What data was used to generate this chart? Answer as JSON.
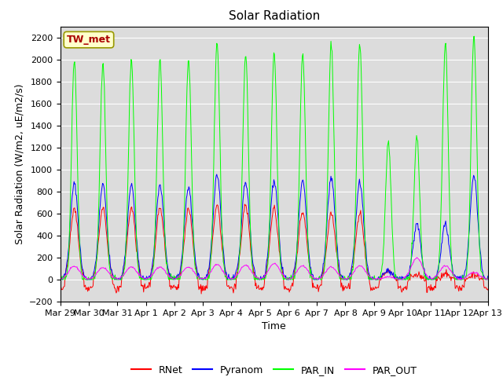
{
  "title": "Solar Radiation",
  "ylabel": "Solar Radiation (W/m2, uE/m2/s)",
  "xlabel": "Time",
  "station_label": "TW_met",
  "ylim": [
    -200,
    2300
  ],
  "yticks": [
    -200,
    0,
    200,
    400,
    600,
    800,
    1000,
    1200,
    1400,
    1600,
    1800,
    2000,
    2200
  ],
  "x_tick_labels": [
    "Mar 29",
    "Mar 30",
    "Mar 31",
    "Apr 1",
    "Apr 2",
    "Apr 3",
    "Apr 4",
    "Apr 5",
    "Apr 6",
    "Apr 7",
    "Apr 8",
    "Apr 9",
    "Apr 10",
    "Apr 11",
    "Apr 12",
    "Apr 13"
  ],
  "colors": {
    "RNet": "#ff0000",
    "Pyranom": "#0000ff",
    "PAR_IN": "#00ff00",
    "PAR_OUT": "#ff00ff"
  },
  "legend_labels": [
    "RNet",
    "Pyranom",
    "PAR_IN",
    "PAR_OUT"
  ],
  "plot_bg_color": "#dcdcdc",
  "fig_bg_color": "#ffffff",
  "grid_color": "#ffffff",
  "title_fontsize": 11,
  "label_fontsize": 9,
  "tick_fontsize": 8
}
